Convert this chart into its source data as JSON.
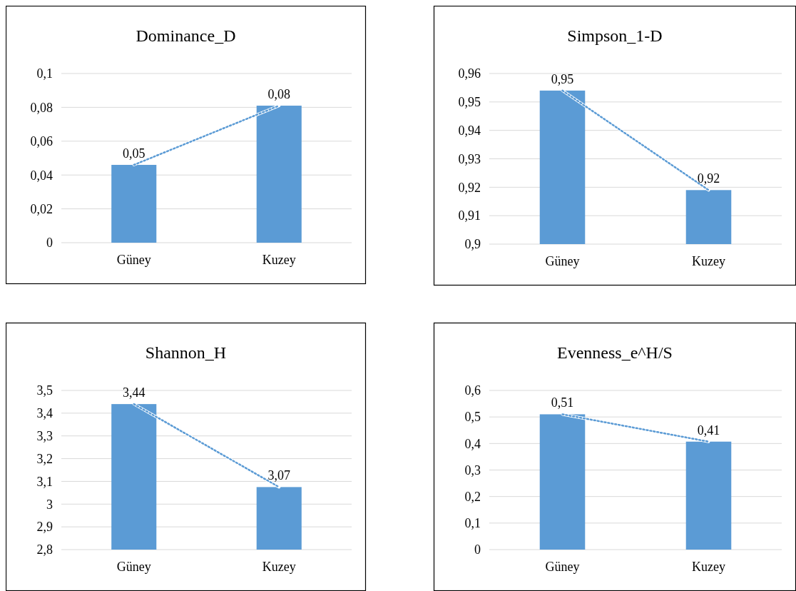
{
  "chart_data": [
    {
      "type": "bar",
      "title": "Dominance_D",
      "categories": [
        "Güney",
        "Kuzey"
      ],
      "ylim": [
        0,
        0.1
      ],
      "yticks": [
        {
          "value": 0,
          "label": "0"
        },
        {
          "value": 0.02,
          "label": "0,02"
        },
        {
          "value": 0.04,
          "label": "0,04"
        },
        {
          "value": 0.06,
          "label": "0,06"
        },
        {
          "value": 0.08,
          "label": "0,08"
        },
        {
          "value": 0.1,
          "label": "0,1"
        }
      ],
      "grid": "y",
      "series": [
        {
          "color": "#5b9bd5",
          "values": [
            0.046,
            0.081
          ],
          "value_labels": [
            "0,05",
            "0,08"
          ]
        },
        {
          "type": "line",
          "color": "#5b9bd5",
          "line_style": "dotted",
          "values": [
            0.046,
            0.081
          ]
        }
      ]
    },
    {
      "type": "bar",
      "title": "Simpson_1-D",
      "categories": [
        "Güney",
        "Kuzey"
      ],
      "ylim": [
        0.9,
        0.96
      ],
      "yticks": [
        {
          "value": 0.9,
          "label": "0,9"
        },
        {
          "value": 0.91,
          "label": "0,91"
        },
        {
          "value": 0.92,
          "label": "0,92"
        },
        {
          "value": 0.93,
          "label": "0,93"
        },
        {
          "value": 0.94,
          "label": "0,94"
        },
        {
          "value": 0.95,
          "label": "0,95"
        },
        {
          "value": 0.96,
          "label": "0,96"
        }
      ],
      "grid": "y",
      "series": [
        {
          "color": "#5b9bd5",
          "values": [
            0.954,
            0.919
          ],
          "value_labels": [
            "0,95",
            "0,92"
          ]
        },
        {
          "type": "line",
          "color": "#5b9bd5",
          "line_style": "dotted",
          "values": [
            0.954,
            0.919
          ]
        }
      ]
    },
    {
      "type": "bar",
      "title": "Shannon_H",
      "categories": [
        "Güney",
        "Kuzey"
      ],
      "ylim": [
        2.8,
        3.5
      ],
      "yticks": [
        {
          "value": 2.8,
          "label": "2,8"
        },
        {
          "value": 2.9,
          "label": "2,9"
        },
        {
          "value": 3,
          "label": "3"
        },
        {
          "value": 3.1,
          "label": "3,1"
        },
        {
          "value": 3.2,
          "label": "3,2"
        },
        {
          "value": 3.3,
          "label": "3,3"
        },
        {
          "value": 3.4,
          "label": "3,4"
        },
        {
          "value": 3.5,
          "label": "3,5"
        }
      ],
      "grid": "y",
      "series": [
        {
          "color": "#5b9bd5",
          "values": [
            3.44,
            3.075
          ],
          "value_labels": [
            "3,44",
            "3,07"
          ]
        },
        {
          "type": "line",
          "color": "#5b9bd5",
          "line_style": "dotted",
          "values": [
            3.44,
            3.075
          ]
        }
      ]
    },
    {
      "type": "bar",
      "title": "Evenness_e^H/S",
      "categories": [
        "Güney",
        "Kuzey"
      ],
      "ylim": [
        0,
        0.6
      ],
      "yticks": [
        {
          "value": 0,
          "label": "0"
        },
        {
          "value": 0.1,
          "label": "0,1"
        },
        {
          "value": 0.2,
          "label": "0,2"
        },
        {
          "value": 0.3,
          "label": "0,3"
        },
        {
          "value": 0.4,
          "label": "0,4"
        },
        {
          "value": 0.5,
          "label": "0,5"
        },
        {
          "value": 0.6,
          "label": "0,6"
        }
      ],
      "grid": "y",
      "series": [
        {
          "color": "#5b9bd5",
          "values": [
            0.51,
            0.407
          ],
          "value_labels": [
            "0,51",
            "0,41"
          ]
        },
        {
          "type": "line",
          "color": "#5b9bd5",
          "line_style": "dotted",
          "values": [
            0.51,
            0.407
          ]
        }
      ]
    }
  ]
}
